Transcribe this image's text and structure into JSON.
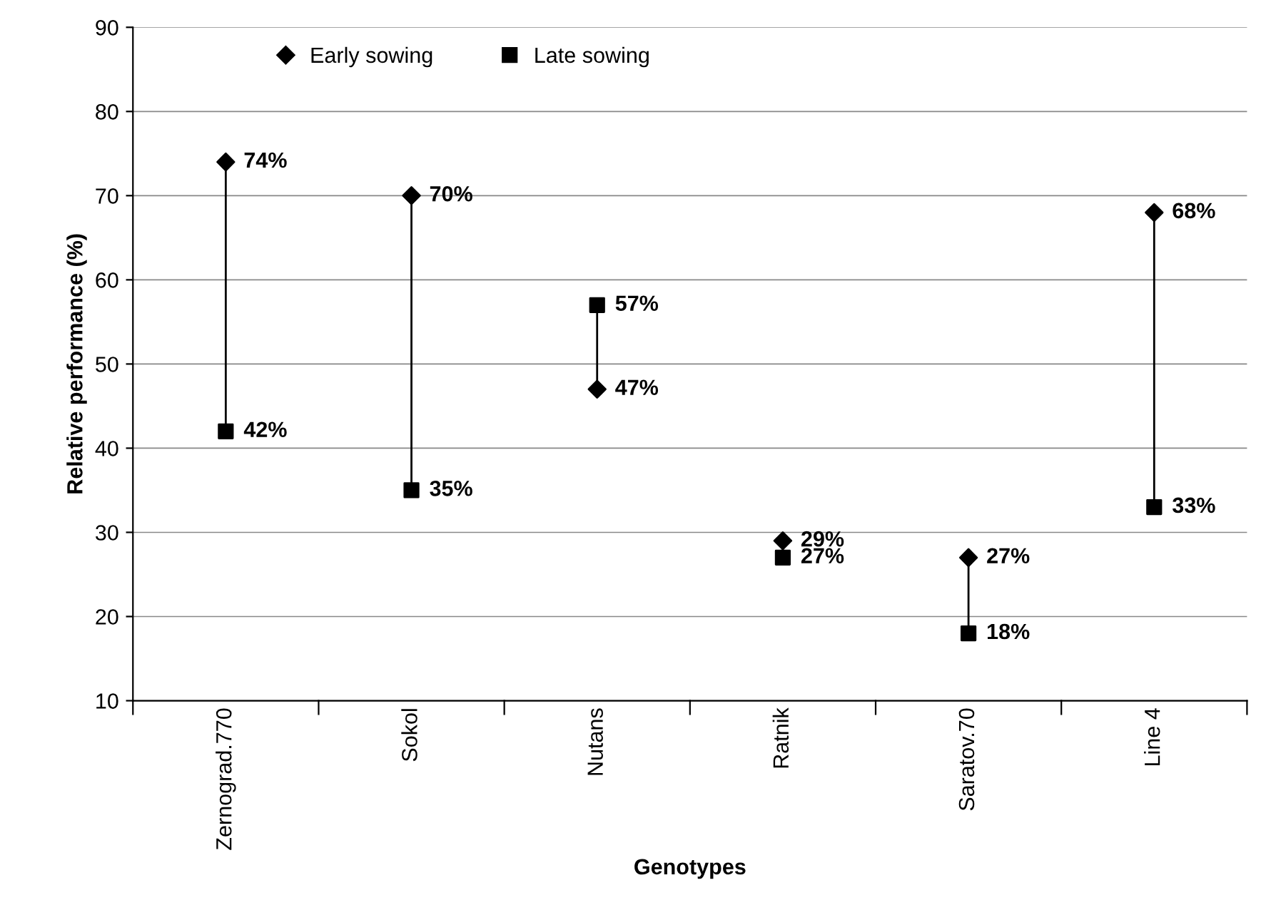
{
  "chart_data": {
    "type": "scatter",
    "xlabel": "Genotypes",
    "ylabel": "Relative performance (%)",
    "categories": [
      "Zernograd.770",
      "Sokol",
      "Nutans",
      "Ratnik",
      "Saratov.70",
      "Line 4"
    ],
    "series": [
      {
        "name": "Early sowing",
        "color": "#000000",
        "marker": "diamond",
        "values": [
          74,
          70,
          47,
          29,
          27,
          68
        ],
        "value_labels": [
          "74%",
          "70%",
          "47%",
          "29%",
          "27%",
          "68%"
        ]
      },
      {
        "name": "Late sowing",
        "color": "#000000",
        "marker": "square",
        "values": [
          42,
          35,
          57,
          27,
          18,
          33
        ],
        "value_labels": [
          "42%",
          "35%",
          "57%",
          "27%",
          "18%",
          "33%"
        ]
      }
    ],
    "ylim": [
      10,
      90
    ],
    "yticks": [
      10,
      20,
      30,
      40,
      50,
      60,
      70,
      80,
      90
    ],
    "grid": "y",
    "legend": "top left"
  }
}
